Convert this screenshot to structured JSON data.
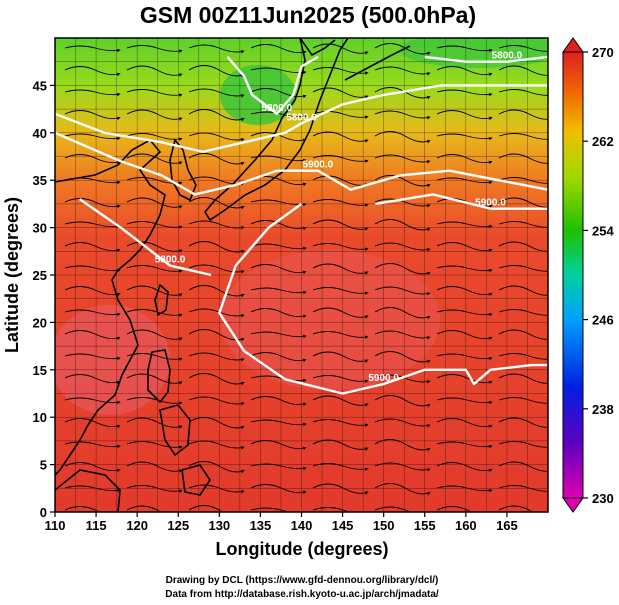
{
  "title": "GSM 00Z11Jun2025 (500.0hPa)",
  "xlabel": "Longitude (degrees)",
  "ylabel": "Latitude  (degrees)",
  "credit_line1": "Drawing by DCL (https://www.gfd-dennou.org/library/dcl/)",
  "credit_line2": "Data from http://database.rish.kyoto-u.ac.jp/arch/jmadata/",
  "chart_data": {
    "type": "heatmap",
    "title": "GSM 00Z11Jun2025 (500.0hPa)",
    "xlabel": "Longitude (degrees)",
    "ylabel": "Latitude  (degrees)",
    "xlim": [
      110,
      170
    ],
    "ylim": [
      0,
      50
    ],
    "xticks": [
      "110",
      "115",
      "120",
      "125",
      "130",
      "135",
      "140",
      "145",
      "150",
      "155",
      "160",
      "165"
    ],
    "yticks": [
      "0",
      "5",
      "10",
      "15",
      "20",
      "25",
      "30",
      "35",
      "40",
      "45"
    ],
    "grid": true,
    "colorbar": {
      "min": 230,
      "max": 270,
      "ticks": [
        "270",
        "262",
        "254",
        "246",
        "238",
        "230"
      ],
      "colors": [
        "#e000b0",
        "#6000c0",
        "#0020e0",
        "#00a0ff",
        "#00d0a0",
        "#20c000",
        "#a0d800",
        "#f0c000",
        "#f07000",
        "#e02020"
      ]
    },
    "contours": [
      {
        "label": "5800.0",
        "points": [
          [
            155,
            48
          ],
          [
            160,
            47.5
          ],
          [
            165,
            47.5
          ],
          [
            170,
            48
          ]
        ]
      },
      {
        "label": "5800.0",
        "points": [
          [
            131,
            48
          ],
          [
            133,
            46
          ],
          [
            134,
            44
          ],
          [
            137,
            42
          ],
          [
            139,
            44
          ],
          [
            140,
            47
          ],
          [
            142,
            48
          ]
        ]
      },
      {
        "label": "5800.0",
        "points": [
          [
            110,
            42
          ],
          [
            116,
            40
          ],
          [
            123,
            39
          ],
          [
            128,
            38
          ],
          [
            133,
            39
          ],
          [
            138,
            40
          ],
          [
            140,
            41
          ],
          [
            145,
            43
          ],
          [
            150,
            44
          ],
          [
            157,
            45
          ],
          [
            163,
            45
          ],
          [
            168,
            45
          ],
          [
            170,
            45
          ]
        ]
      },
      {
        "label": "5800.0",
        "points": [
          [
            113,
            33
          ],
          [
            118,
            30
          ],
          [
            124,
            26
          ],
          [
            129,
            25
          ]
        ]
      },
      {
        "label": "5900.0",
        "points": [
          [
            110,
            40
          ],
          [
            118,
            37
          ],
          [
            123,
            35.5
          ],
          [
            127,
            33.5
          ],
          [
            132,
            34.5
          ],
          [
            137,
            36
          ],
          [
            142,
            36
          ],
          [
            146,
            34
          ],
          [
            152,
            35.5
          ],
          [
            158,
            36
          ],
          [
            164,
            35
          ],
          [
            170,
            34
          ]
        ]
      },
      {
        "label": "5900.0",
        "points": [
          [
            149,
            32.5
          ],
          [
            156,
            33.5
          ],
          [
            163,
            32
          ],
          [
            170,
            32
          ]
        ]
      },
      {
        "label": "5900.0",
        "points": [
          [
            140,
            32.5
          ],
          [
            136,
            30
          ],
          [
            132,
            26
          ],
          [
            130,
            21
          ],
          [
            133,
            17
          ],
          [
            138,
            14
          ],
          [
            145,
            12.5
          ],
          [
            150,
            13.5
          ],
          [
            155,
            15
          ],
          [
            160,
            15
          ],
          [
            161,
            13.5
          ],
          [
            163,
            15
          ],
          [
            168,
            15.5
          ],
          [
            170,
            15.5
          ]
        ]
      }
    ]
  }
}
